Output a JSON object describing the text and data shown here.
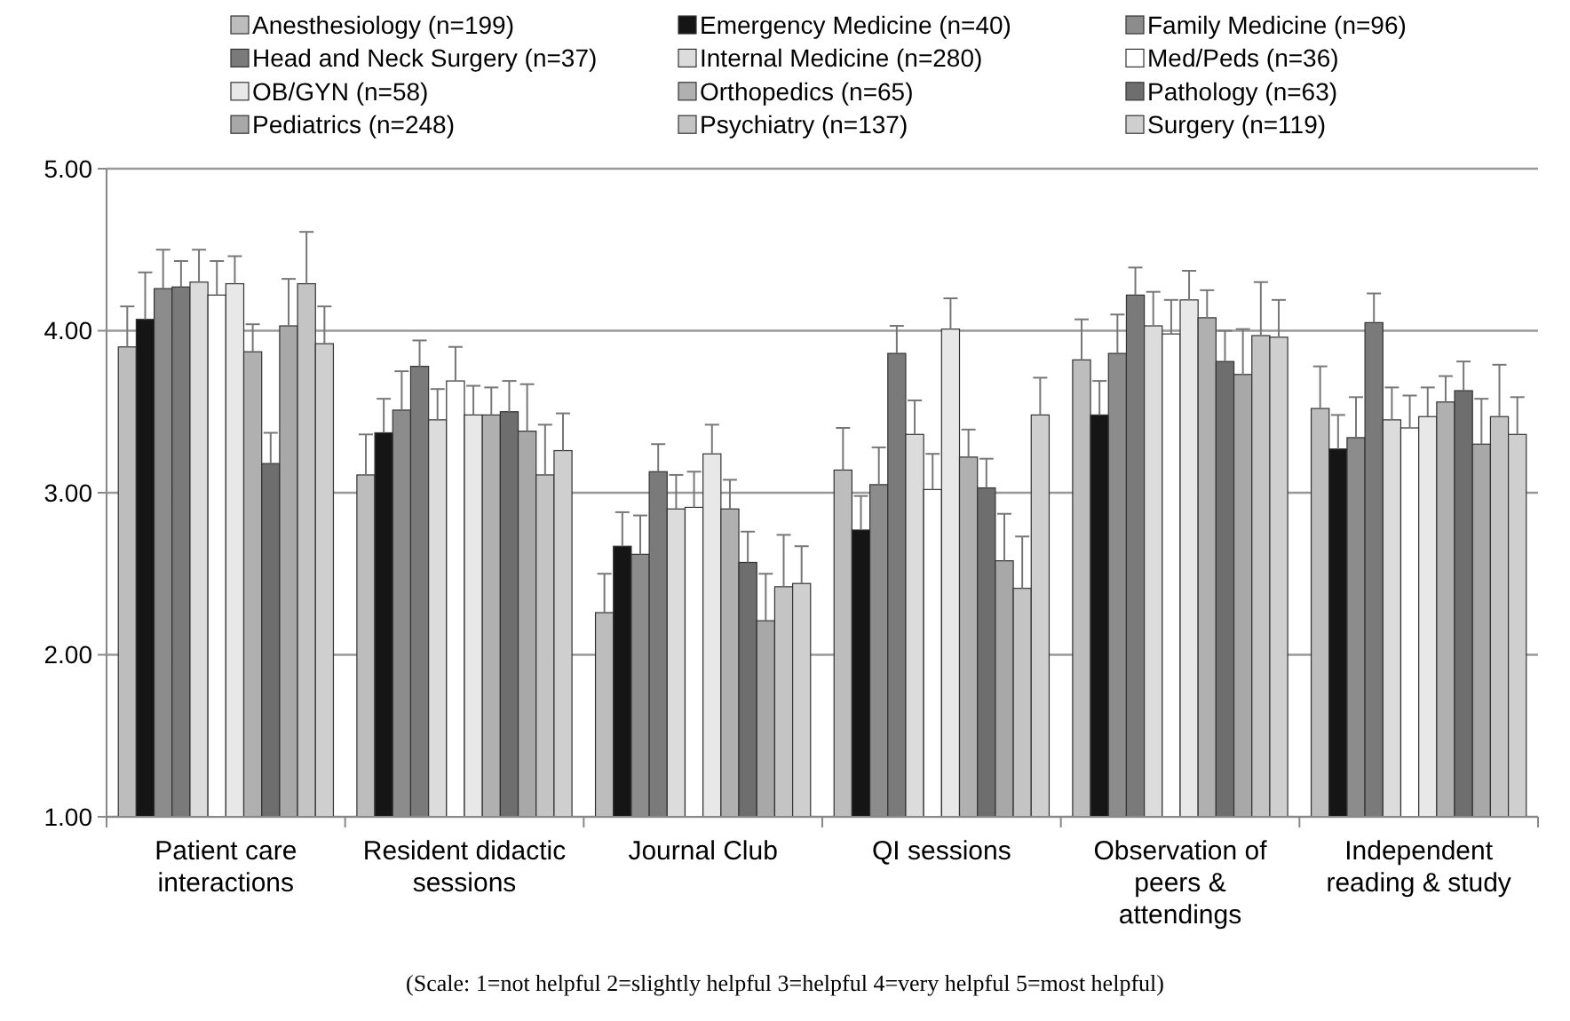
{
  "chart_data": {
    "type": "bar",
    "categories": [
      "Patient care interactions",
      "Resident didactic sessions",
      "Journal Club",
      "QI sessions",
      "Observation of peers & attendings",
      "Independent reading & study"
    ],
    "ylim": [
      1,
      5
    ],
    "yticks": [
      {
        "value": 1,
        "label": "1.00"
      },
      {
        "value": 2,
        "label": "2.00"
      },
      {
        "value": 3,
        "label": "3.00"
      },
      {
        "value": 4,
        "label": "4.00"
      },
      {
        "value": 5,
        "label": "5.00"
      }
    ],
    "grid": "y",
    "legend": "top",
    "annotations": [
      "(Scale: 1=not helpful 2=slightly helpful 3=helpful 4=very helpful 5=most helpful)"
    ],
    "series": [
      {
        "name": "Anesthesiology (n=199)",
        "color": "#bdbdbd",
        "values": [
          3.9,
          3.11,
          2.26,
          3.14,
          3.82,
          3.52
        ],
        "errors": [
          [
            3.9,
            4.15
          ],
          [
            3.11,
            3.36
          ],
          [
            2.26,
            2.5
          ],
          [
            3.14,
            3.4
          ],
          [
            3.82,
            4.07
          ],
          [
            3.52,
            3.78
          ]
        ]
      },
      {
        "name": "Emergency Medicine (n=40)",
        "color": "#151515",
        "values": [
          4.07,
          3.37,
          2.67,
          2.77,
          3.48,
          3.27
        ],
        "errors": [
          [
            4.07,
            4.36
          ],
          [
            3.37,
            3.58
          ],
          [
            2.67,
            2.88
          ],
          [
            2.77,
            2.98
          ],
          [
            3.48,
            3.69
          ],
          [
            3.27,
            3.48
          ]
        ]
      },
      {
        "name": "Family Medicine (n=96)",
        "color": "#8c8c8c",
        "values": [
          4.26,
          3.51,
          2.62,
          3.05,
          3.86,
          3.34
        ],
        "errors": [
          [
            4.26,
            4.5
          ],
          [
            3.51,
            3.75
          ],
          [
            2.62,
            2.86
          ],
          [
            3.05,
            3.28
          ],
          [
            3.86,
            4.1
          ],
          [
            3.34,
            3.59
          ]
        ]
      },
      {
        "name": "Head and Neck Surgery (n=37)",
        "color": "#7a7a7a",
        "values": [
          4.27,
          3.78,
          3.13,
          3.86,
          4.22,
          4.05
        ],
        "errors": [
          [
            4.27,
            4.43
          ],
          [
            3.78,
            3.94
          ],
          [
            3.13,
            3.3
          ],
          [
            3.86,
            4.03
          ],
          [
            4.22,
            4.39
          ],
          [
            4.05,
            4.23
          ]
        ]
      },
      {
        "name": "Internal Medicine (n=280)",
        "color": "#dcdcdc",
        "values": [
          4.3,
          3.45,
          2.9,
          3.36,
          4.03,
          3.45
        ],
        "errors": [
          [
            4.3,
            4.5
          ],
          [
            3.45,
            3.64
          ],
          [
            2.9,
            3.11
          ],
          [
            3.36,
            3.57
          ],
          [
            4.03,
            4.24
          ],
          [
            3.45,
            3.65
          ]
        ]
      },
      {
        "name": "Med/Peds (n=36)",
        "color": "#ffffff",
        "values": [
          4.22,
          3.69,
          2.91,
          3.02,
          3.98,
          3.4
        ],
        "errors": [
          [
            4.22,
            4.43
          ],
          [
            3.69,
            3.9
          ],
          [
            2.91,
            3.13
          ],
          [
            3.02,
            3.24
          ],
          [
            3.98,
            4.19
          ],
          [
            3.4,
            3.6
          ]
        ]
      },
      {
        "name": "OB/GYN (n=58)",
        "color": "#e8e8e8",
        "values": [
          4.29,
          3.48,
          3.24,
          4.01,
          4.19,
          3.47
        ],
        "errors": [
          [
            4.29,
            4.46
          ],
          [
            3.48,
            3.66
          ],
          [
            3.24,
            3.42
          ],
          [
            4.01,
            4.2
          ],
          [
            4.19,
            4.37
          ],
          [
            3.47,
            3.65
          ]
        ]
      },
      {
        "name": "Orthopedics (n=65)",
        "color": "#b0b0b0",
        "values": [
          3.87,
          3.48,
          2.9,
          3.22,
          4.08,
          3.56
        ],
        "errors": [
          [
            3.87,
            4.04
          ],
          [
            3.48,
            3.65
          ],
          [
            2.9,
            3.08
          ],
          [
            3.22,
            3.39
          ],
          [
            4.08,
            4.25
          ],
          [
            3.56,
            3.72
          ]
        ]
      },
      {
        "name": "Pathology (n=63)",
        "color": "#6e6e6e",
        "values": [
          3.18,
          3.5,
          2.57,
          3.03,
          3.81,
          3.63
        ],
        "errors": [
          [
            3.18,
            3.37
          ],
          [
            3.5,
            3.69
          ],
          [
            2.57,
            2.76
          ],
          [
            3.03,
            3.21
          ],
          [
            3.81,
            4.0
          ],
          [
            3.63,
            3.81
          ]
        ]
      },
      {
        "name": "Pediatrics (n=248)",
        "color": "#a8a8a8",
        "values": [
          4.03,
          3.38,
          2.21,
          2.58,
          3.73,
          3.3
        ],
        "errors": [
          [
            4.03,
            4.32
          ],
          [
            3.38,
            3.67
          ],
          [
            2.21,
            2.5
          ],
          [
            2.58,
            2.87
          ],
          [
            3.73,
            4.01
          ],
          [
            3.3,
            3.58
          ]
        ]
      },
      {
        "name": "Psychiatry (n=137)",
        "color": "#c4c4c4",
        "values": [
          4.29,
          3.11,
          2.42,
          2.41,
          3.97,
          3.47
        ],
        "errors": [
          [
            4.29,
            4.61
          ],
          [
            3.11,
            3.42
          ],
          [
            2.42,
            2.74
          ],
          [
            2.41,
            2.73
          ],
          [
            3.97,
            4.3
          ],
          [
            3.47,
            3.79
          ]
        ]
      },
      {
        "name": "Surgery (n=119)",
        "color": "#cfcfcf",
        "values": [
          3.92,
          3.26,
          2.44,
          3.48,
          3.96,
          3.36
        ],
        "errors": [
          [
            3.92,
            4.15
          ],
          [
            3.26,
            3.49
          ],
          [
            2.44,
            2.67
          ],
          [
            3.48,
            3.71
          ],
          [
            3.96,
            4.19
          ],
          [
            3.36,
            3.59
          ]
        ]
      }
    ]
  }
}
